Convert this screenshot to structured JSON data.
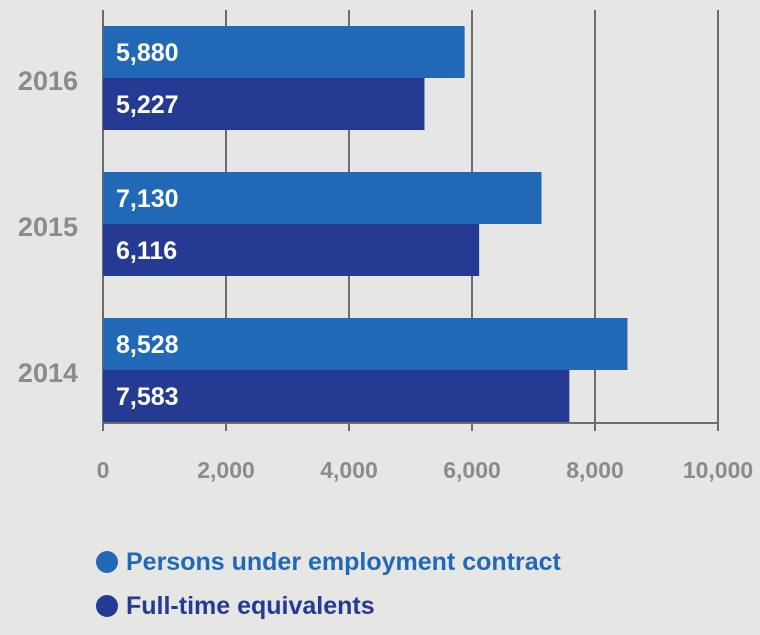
{
  "chart_data": {
    "type": "bar",
    "orientation": "horizontal",
    "categories": [
      "2016",
      "2015",
      "2014"
    ],
    "series": [
      {
        "name": "Persons under employment contract",
        "values": [
          5880,
          7130,
          8528
        ],
        "value_labels": [
          "5,880",
          "7,130",
          "8,528"
        ],
        "color": "#2169b6"
      },
      {
        "name": "Full-time equivalents",
        "values": [
          5227,
          6116,
          7583
        ],
        "value_labels": [
          "5,227",
          "6,116",
          "7,583"
        ],
        "color": "#253a92"
      }
    ],
    "xlim": [
      0,
      10000
    ],
    "x_ticks": [
      0,
      2000,
      4000,
      6000,
      8000,
      10000
    ],
    "x_tick_labels": [
      "0",
      "2,000",
      "4,000",
      "6,000",
      "8,000",
      "10,000"
    ],
    "grid": "vertical",
    "legend_position": "bottom-left",
    "title": "",
    "xlabel": "",
    "ylabel": ""
  }
}
